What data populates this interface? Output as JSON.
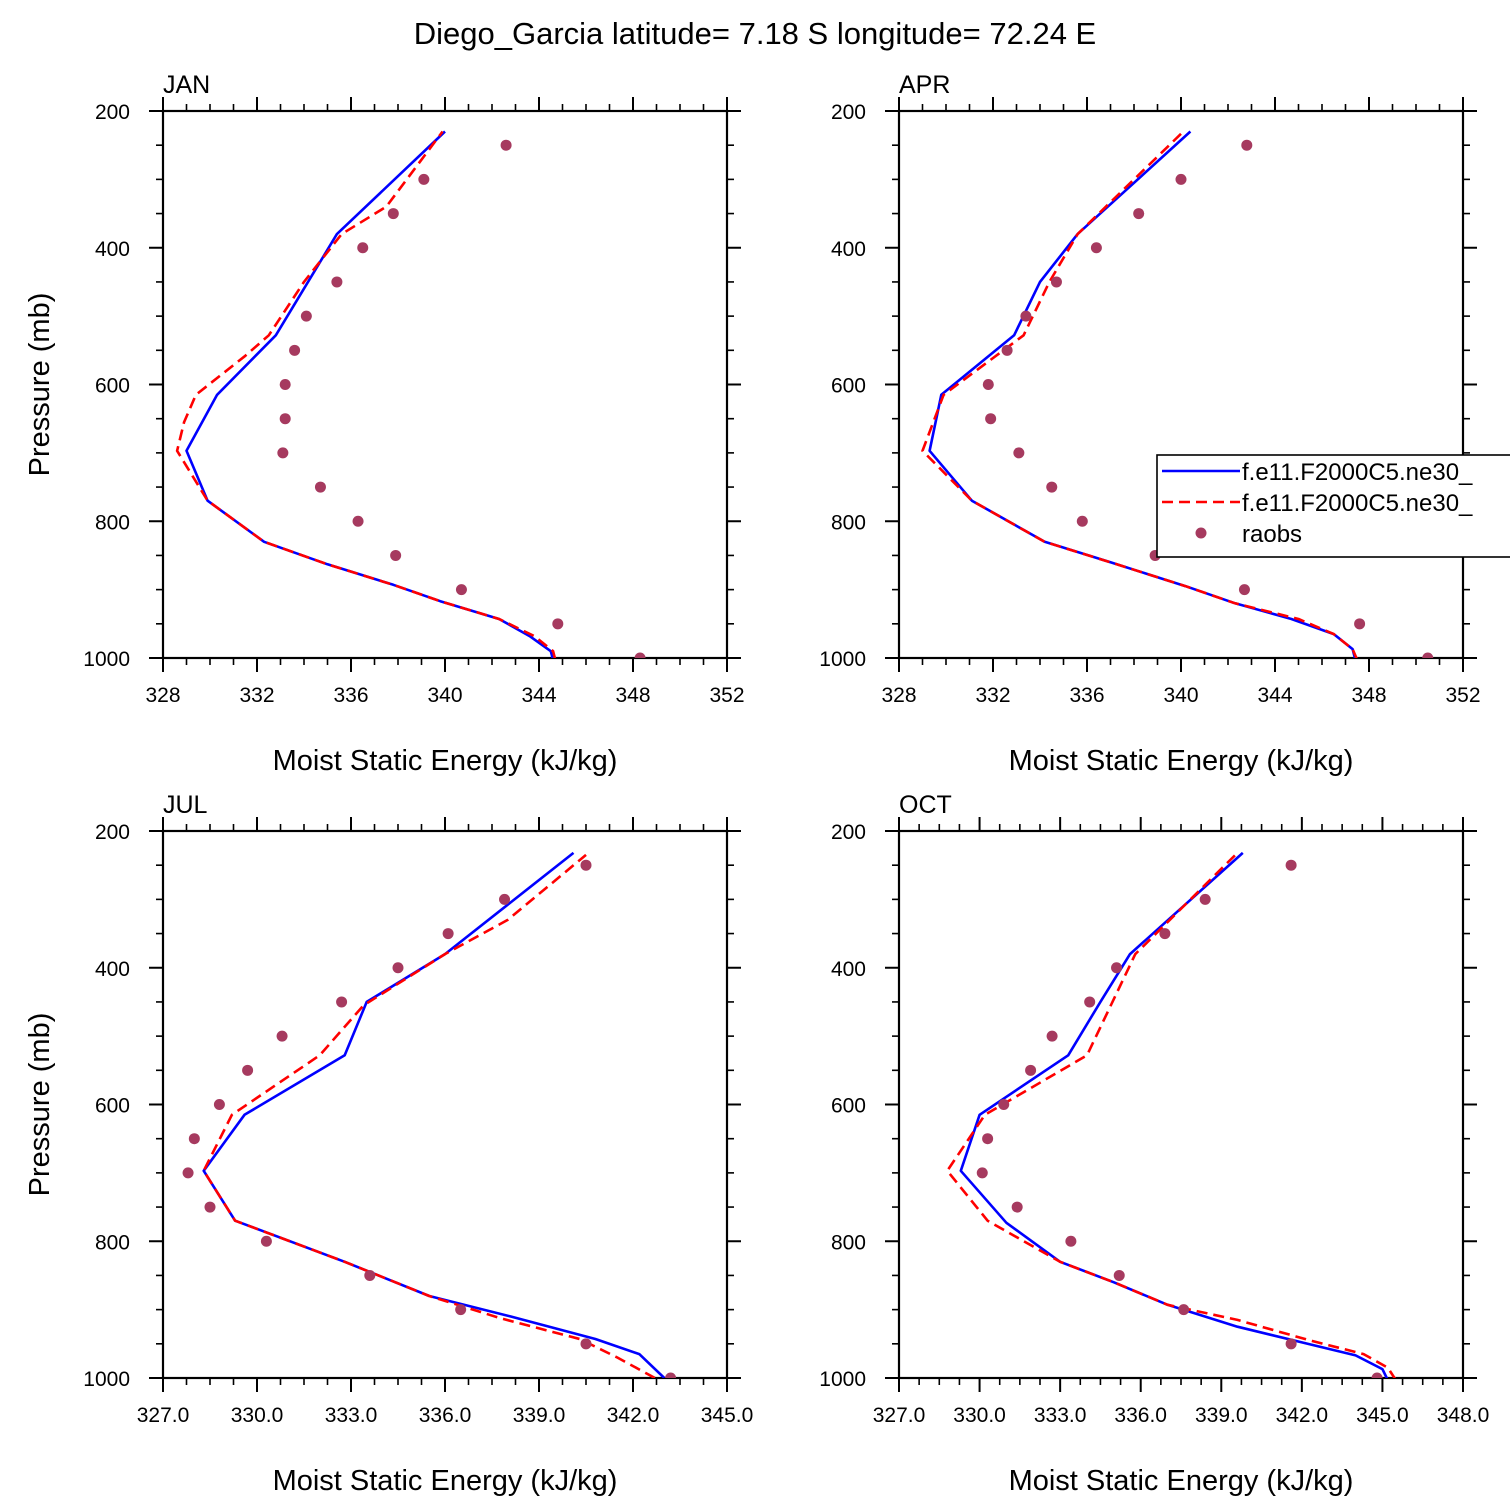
{
  "figure_title": "Diego_Garcia  latitude= 7.18 S longitude= 72.24 E",
  "colors": {
    "model1": "#0000ff",
    "model2": "#ff0000",
    "raobs": "#a63a5f",
    "axes": "#000000"
  },
  "legend": [
    {
      "label": "f.e11.F2000C5.ne30_",
      "style": "solid",
      "color": "#0000ff"
    },
    {
      "label": "f.e11.F2000C5.ne30_",
      "style": "dashed",
      "color": "#ff0000"
    },
    {
      "label": "raobs",
      "style": "marker",
      "color": "#a63a5f"
    }
  ],
  "chart_data": [
    {
      "type": "line",
      "title": "JAN",
      "xlabel": "Moist Static Energy (kJ/kg)",
      "ylabel": "Pressure (mb)",
      "xlim": [
        328,
        352
      ],
      "ylim": [
        200,
        1000
      ],
      "y_reversed": true,
      "xticks": [
        328,
        332,
        336,
        340,
        344,
        348,
        352
      ],
      "xtick_labels": [
        "328",
        "332",
        "336",
        "340",
        "344",
        "348",
        "352"
      ],
      "yticks": [
        200,
        400,
        600,
        800,
        1000
      ],
      "ytick_labels": [
        "200",
        "400",
        "600",
        "800",
        "1000"
      ],
      "series": [
        {
          "name": "f.e11.F2000C5.ne30_",
          "style": "solid",
          "color": "#0000ff",
          "x": [
            344.6,
            344.5,
            343.6,
            342.3,
            339.8,
            337.8,
            335.0,
            332.3,
            329.9,
            329.0,
            330.3,
            332.8,
            335.4,
            340.0
          ],
          "y": [
            1003,
            990,
            968,
            943,
            917,
            893,
            863,
            830,
            770,
            697,
            615,
            528,
            380,
            230
          ]
        },
        {
          "name": "f.e11.F2000C5.ne30_",
          "style": "dashed",
          "color": "#ff0000",
          "x": [
            344.7,
            344.6,
            343.8,
            342.3,
            339.8,
            337.8,
            335.0,
            332.3,
            329.9,
            328.6,
            328.9,
            329.4,
            331.5,
            332.5,
            334.0,
            335.6,
            337.5,
            339.9
          ],
          "y": [
            1003,
            990,
            968,
            943,
            917,
            893,
            863,
            830,
            770,
            697,
            655,
            615,
            558,
            528,
            450,
            380,
            340,
            230
          ]
        },
        {
          "name": "raobs",
          "style": "marker",
          "color": "#a63a5f",
          "x": [
            348.3,
            344.8,
            340.7,
            337.9,
            336.3,
            334.7,
            333.1,
            333.2,
            333.2,
            333.6,
            334.1,
            335.4,
            336.5,
            337.8,
            339.1,
            342.6
          ],
          "y": [
            1000,
            950,
            900,
            850,
            800,
            750,
            700,
            650,
            600,
            550,
            500,
            450,
            400,
            350,
            300,
            250
          ]
        }
      ]
    },
    {
      "type": "line",
      "title": "APR",
      "xlabel": "Moist Static Energy (kJ/kg)",
      "ylabel": "",
      "xlim": [
        328,
        352
      ],
      "ylim": [
        200,
        1000
      ],
      "y_reversed": true,
      "xticks": [
        328,
        332,
        336,
        340,
        344,
        348,
        352
      ],
      "xtick_labels": [
        "328",
        "332",
        "336",
        "340",
        "344",
        "348",
        "352"
      ],
      "yticks": [
        200,
        400,
        600,
        800,
        1000
      ],
      "ytick_labels": [
        "200",
        "400",
        "600",
        "800",
        "1000"
      ],
      "series": [
        {
          "name": "f.e11.F2000C5.ne30_",
          "style": "solid",
          "color": "#0000ff",
          "x": [
            347.4,
            347.3,
            346.5,
            344.7,
            342.3,
            340.2,
            337.0,
            334.2,
            331.1,
            329.3,
            329.8,
            332.9,
            334.0,
            335.6,
            340.4
          ],
          "y": [
            1000,
            987,
            965,
            943,
            920,
            895,
            860,
            830,
            770,
            697,
            615,
            528,
            450,
            380,
            230
          ]
        },
        {
          "name": "f.e11.F2000C5.ne30_",
          "style": "dashed",
          "color": "#ff0000",
          "x": [
            347.5,
            347.3,
            346.5,
            345.0,
            342.3,
            340.2,
            337.0,
            334.2,
            331.1,
            329.0,
            329.9,
            333.3,
            334.4,
            335.6,
            340.1
          ],
          "y": [
            1003,
            987,
            965,
            943,
            920,
            895,
            860,
            830,
            770,
            697,
            615,
            528,
            450,
            380,
            230
          ]
        },
        {
          "name": "raobs",
          "style": "marker",
          "color": "#a63a5f",
          "x": [
            350.5,
            347.6,
            342.7,
            338.9,
            335.8,
            334.5,
            333.1,
            331.9,
            331.8,
            332.6,
            333.4,
            334.7,
            336.4,
            338.2,
            340.0,
            342.8
          ],
          "y": [
            1000,
            950,
            900,
            850,
            800,
            750,
            700,
            650,
            600,
            550,
            500,
            450,
            400,
            350,
            300,
            250
          ]
        }
      ]
    },
    {
      "type": "line",
      "title": "JUL",
      "xlabel": "Moist Static Energy (kJ/kg)",
      "ylabel": "Pressure (mb)",
      "xlim": [
        327.0,
        345.0
      ],
      "ylim": [
        200,
        1000
      ],
      "y_reversed": true,
      "xticks": [
        327,
        330,
        333,
        336,
        339,
        342,
        345
      ],
      "xtick_labels": [
        "327.0",
        "330.0",
        "333.0",
        "336.0",
        "339.0",
        "342.0",
        "345.0"
      ],
      "yticks": [
        200,
        400,
        600,
        800,
        1000
      ],
      "ytick_labels": [
        "200",
        "400",
        "600",
        "800",
        "1000"
      ],
      "series": [
        {
          "name": "f.e11.F2000C5.ne30_",
          "style": "solid",
          "color": "#0000ff",
          "x": [
            343.0,
            342.2,
            340.8,
            338.1,
            335.5,
            332.8,
            329.3,
            328.3,
            329.6,
            332.8,
            333.5,
            336.0,
            340.1
          ],
          "y": [
            1000,
            965,
            943,
            910,
            880,
            830,
            770,
            697,
            615,
            528,
            450,
            380,
            232
          ]
        },
        {
          "name": "f.e11.F2000C5.ne30_",
          "style": "dashed",
          "color": "#ff0000",
          "x": [
            342.7,
            341.5,
            340.3,
            337.8,
            335.5,
            332.8,
            329.3,
            328.3,
            329.2,
            332.0,
            333.4,
            336.0,
            338.0,
            340.5
          ],
          "y": [
            1000,
            970,
            943,
            913,
            880,
            830,
            770,
            697,
            615,
            528,
            455,
            380,
            330,
            235
          ]
        },
        {
          "name": "raobs",
          "style": "marker",
          "color": "#a63a5f",
          "x": [
            343.2,
            340.5,
            336.5,
            333.6,
            330.3,
            328.5,
            327.8,
            328.0,
            328.8,
            329.7,
            330.8,
            332.7,
            334.5,
            336.1,
            337.9,
            340.5
          ],
          "y": [
            1000,
            950,
            900,
            850,
            800,
            750,
            700,
            650,
            600,
            550,
            500,
            450,
            400,
            350,
            300,
            250
          ]
        }
      ]
    },
    {
      "type": "line",
      "title": "OCT",
      "xlabel": "Moist Static Energy (kJ/kg)",
      "ylabel": "",
      "xlim": [
        327.0,
        348.0
      ],
      "ylim": [
        200,
        1000
      ],
      "y_reversed": true,
      "xticks": [
        327,
        330,
        333,
        336,
        339,
        342,
        345,
        348
      ],
      "xtick_labels": [
        "327.0",
        "330.0",
        "333.0",
        "336.0",
        "339.0",
        "342.0",
        "345.0",
        "348.0"
      ],
      "yticks": [
        200,
        400,
        600,
        800,
        1000
      ],
      "ytick_labels": [
        "200",
        "400",
        "600",
        "800",
        "1000"
      ],
      "series": [
        {
          "name": "f.e11.F2000C5.ne30_",
          "style": "solid",
          "color": "#0000ff",
          "x": [
            345.2,
            345.0,
            344.0,
            342.0,
            339.6,
            337.0,
            335.0,
            333.0,
            331.0,
            329.3,
            330.0,
            333.3,
            334.5,
            335.6,
            339.8
          ],
          "y": [
            1003,
            987,
            967,
            948,
            925,
            893,
            860,
            830,
            773,
            697,
            615,
            528,
            450,
            380,
            232
          ]
        },
        {
          "name": "f.e11.F2000C5.ne30_",
          "style": "dashed",
          "color": "#ff0000",
          "x": [
            345.5,
            345.2,
            344.3,
            342.3,
            339.6,
            337.0,
            335.0,
            333.0,
            330.3,
            328.8,
            330.2,
            334.0,
            335.8,
            339.6
          ],
          "y": [
            1003,
            985,
            965,
            945,
            915,
            893,
            860,
            830,
            770,
            697,
            615,
            528,
            380,
            232
          ]
        },
        {
          "name": "raobs",
          "style": "marker",
          "color": "#a63a5f",
          "x": [
            344.8,
            341.6,
            337.6,
            335.2,
            333.4,
            331.4,
            330.1,
            330.3,
            330.9,
            331.9,
            332.7,
            334.1,
            335.1,
            336.9,
            338.4,
            341.6
          ],
          "y": [
            1000,
            950,
            900,
            850,
            800,
            750,
            700,
            650,
            600,
            550,
            500,
            450,
            400,
            350,
            300,
            250
          ]
        }
      ]
    }
  ]
}
